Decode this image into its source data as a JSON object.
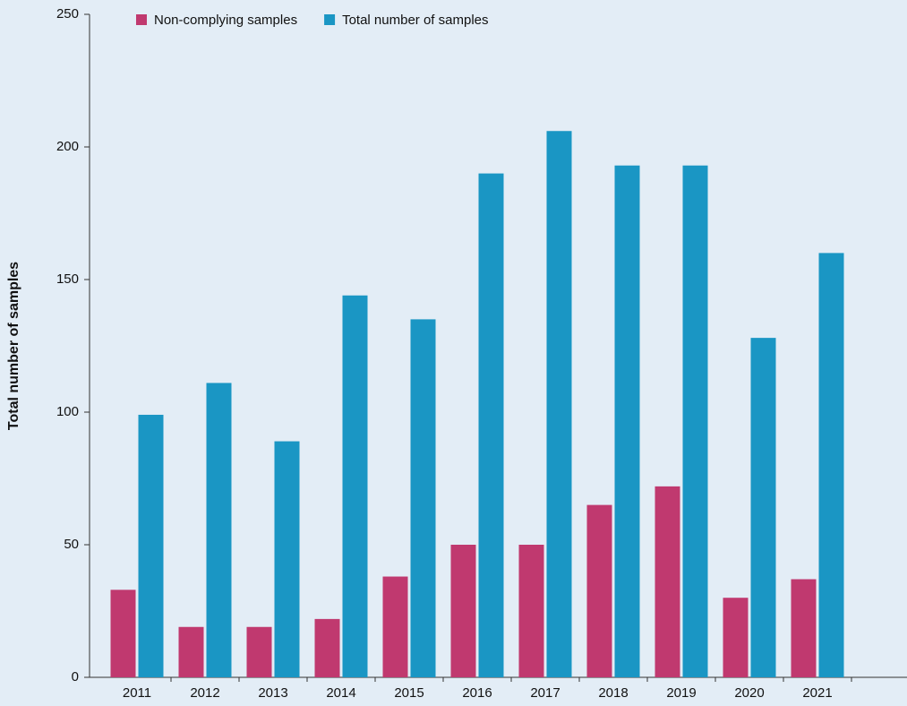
{
  "chart_data": {
    "type": "bar",
    "y_label": "Total number of samples",
    "categories": [
      "2011",
      "2012",
      "2013",
      "2014",
      "2015",
      "2016",
      "2017",
      "2018",
      "2019",
      "2020",
      "2021"
    ],
    "series": [
      {
        "name": "Non-complying samples",
        "color": "#c0396f",
        "values": [
          33,
          19,
          19,
          22,
          38,
          50,
          50,
          65,
          72,
          30,
          37
        ]
      },
      {
        "name": "Total number of samples",
        "color": "#1a96c4",
        "values": [
          99,
          111,
          89,
          144,
          135,
          190,
          206,
          193,
          193,
          128,
          160
        ]
      }
    ],
    "ylim": [
      0,
      250
    ],
    "yticks": [
      0,
      50,
      100,
      150,
      200,
      250
    ],
    "grid": false,
    "legend": "top"
  }
}
